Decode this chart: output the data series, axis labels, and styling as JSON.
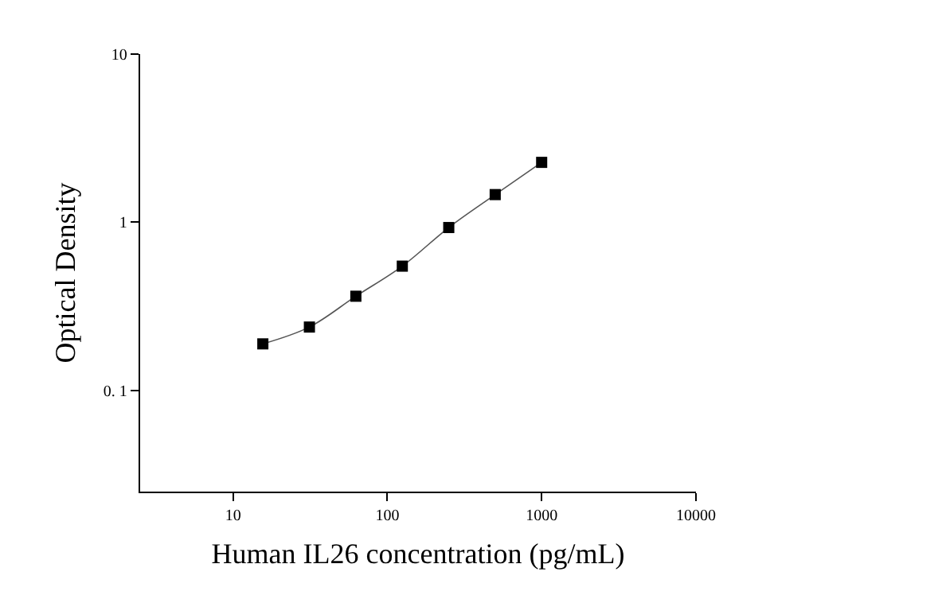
{
  "chart_data": {
    "type": "scatter",
    "xlabel": "Human IL26 concentration (pg/mL)",
    "ylabel": "Optical Density",
    "log": "xy",
    "grid": false,
    "marker": "square",
    "xlim": [
      2.5,
      10000
    ],
    "xticks": [
      10,
      100,
      1000,
      10000
    ],
    "ylim": [
      0.025,
      10
    ],
    "yticks": [
      {
        "value": 0.1,
        "label": "0. 1"
      },
      1,
      10
    ],
    "series": [
      {
        "color": "#000000",
        "x": [
          15.6,
          31.25,
          62.5,
          125,
          250,
          500,
          1000
        ],
        "values": [
          0.189,
          0.238,
          0.363,
          0.548,
          0.93,
          1.46,
          2.27
        ]
      },
      {
        "type": "line",
        "color": "#555555",
        "line_style": "solid",
        "marker": "none",
        "x": [
          15.6,
          31.25,
          62.5,
          125,
          250,
          500,
          1000
        ],
        "values": [
          0.189,
          0.238,
          0.363,
          0.548,
          0.93,
          1.46,
          2.27
        ]
      }
    ]
  }
}
